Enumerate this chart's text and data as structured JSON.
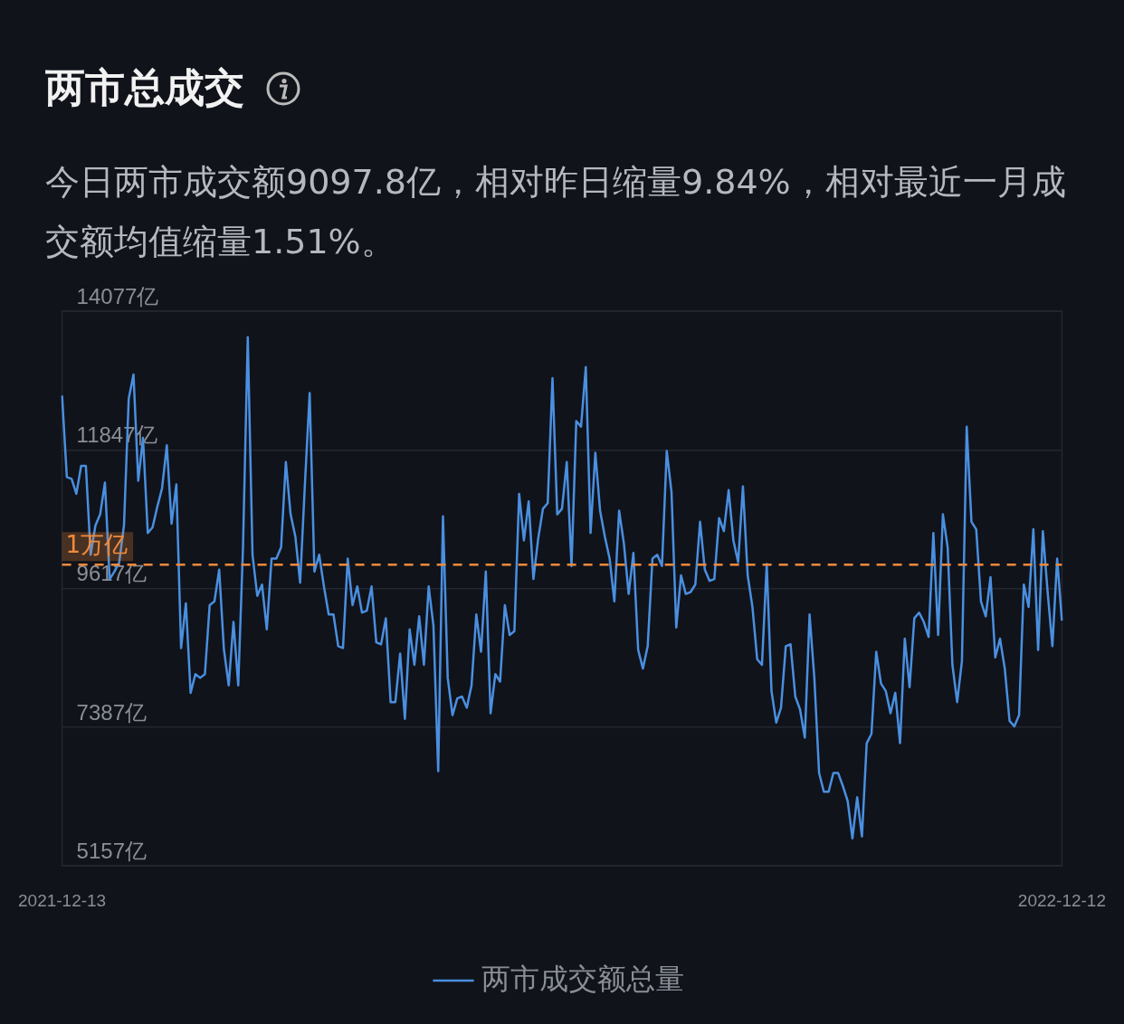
{
  "chart_data": {
    "type": "line",
    "title": "两市总成交",
    "subtitle": "今日两市成交额9097.8亿，相对昨日缩量9.84%，相对最近一月成交额均值缩量1.51%。",
    "categories": [
      "2021-12-13",
      null,
      null,
      null,
      null,
      null,
      null,
      null,
      null,
      null,
      null,
      null,
      null,
      null,
      null,
      null,
      null,
      null,
      null,
      null,
      null,
      null,
      null,
      null,
      null,
      null,
      null,
      null,
      null,
      null,
      null,
      null,
      null,
      null,
      null,
      null,
      null,
      null,
      null,
      null,
      null,
      null,
      null,
      null,
      null,
      null,
      null,
      null,
      null,
      null,
      null,
      null,
      null,
      null,
      null,
      null,
      null,
      null,
      null,
      null,
      null,
      null,
      null,
      null,
      null,
      null,
      null,
      null,
      null,
      null,
      null,
      null,
      null,
      null,
      null,
      null,
      null,
      null,
      null,
      null,
      null,
      null,
      null,
      null,
      null,
      null,
      null,
      null,
      null,
      null,
      null,
      null,
      null,
      null,
      null,
      null,
      null,
      null,
      null,
      null,
      null,
      null,
      null,
      null,
      null,
      null,
      null,
      null,
      null,
      null,
      null,
      null,
      null,
      null,
      null,
      null,
      null,
      null,
      null,
      null,
      null,
      null,
      null,
      null,
      null,
      null,
      null,
      null,
      null,
      null,
      null,
      null,
      null,
      null,
      null,
      null,
      null,
      null,
      null,
      null,
      null,
      null,
      null,
      null,
      null,
      null,
      null,
      null,
      null,
      null,
      null,
      null,
      null,
      null,
      null,
      null,
      null,
      null,
      null,
      null,
      null,
      null,
      null,
      null,
      null,
      null,
      null,
      null,
      null,
      null,
      null,
      null,
      null,
      null,
      null,
      null,
      null,
      null,
      null,
      null,
      null,
      null,
      null,
      null,
      null,
      null,
      null,
      null,
      null,
      null,
      null,
      null,
      null,
      null,
      null,
      null,
      null,
      null,
      null,
      null,
      null,
      null,
      null,
      null,
      null,
      null,
      null,
      null,
      null,
      null,
      "2022-12-12"
    ],
    "series": [
      {
        "name": "两市成交额总量",
        "color": "#4a8fe0",
        "values": [
          12720,
          11410,
          11380,
          11140,
          11590,
          11590,
          10160,
          10630,
          10810,
          11320,
          9770,
          9890,
          10040,
          10630,
          12670,
          13060,
          11350,
          12040,
          10510,
          10600,
          10930,
          11230,
          11920,
          10660,
          11290,
          8660,
          9380,
          7940,
          8240,
          8180,
          8240,
          9350,
          9410,
          9920,
          8630,
          8060,
          9080,
          8060,
          10280,
          13660,
          10160,
          9500,
          9680,
          8960,
          10100,
          10100,
          10280,
          11650,
          10810,
          10450,
          9710,
          11290,
          12760,
          9890,
          10160,
          9650,
          9200,
          9200,
          8690,
          8660,
          10100,
          9350,
          9650,
          9230,
          9260,
          9650,
          8750,
          8720,
          9140,
          7790,
          7790,
          8570,
          7520,
          8960,
          8390,
          9170,
          8390,
          9650,
          9020,
          6680,
          10780,
          8180,
          7580,
          7850,
          7880,
          7700,
          8060,
          9200,
          8600,
          9890,
          7610,
          8240,
          8120,
          9350,
          8870,
          8930,
          11140,
          10390,
          11020,
          9770,
          10420,
          10900,
          10990,
          13000,
          10810,
          10900,
          11650,
          9980,
          12310,
          12220,
          13180,
          10510,
          11800,
          10870,
          10450,
          10100,
          9410,
          10870,
          10340,
          9530,
          10190,
          8630,
          8330,
          8690,
          10100,
          10160,
          9980,
          11830,
          11170,
          8990,
          9830,
          9530,
          9560,
          9680,
          10690,
          9920,
          9740,
          9770,
          10750,
          10540,
          11200,
          10390,
          10040,
          11260,
          9830,
          9320,
          8480,
          8390,
          10010,
          7970,
          7460,
          7700,
          8690,
          8720,
          7880,
          7670,
          7220,
          9200,
          8180,
          6650,
          6350,
          6350,
          6650,
          6650,
          6440,
          6200,
          5600,
          6260,
          5630,
          7130,
          7280,
          8600,
          8090,
          7970,
          7610,
          7940,
          7130,
          8810,
          8030,
          9140,
          9230,
          9080,
          8840,
          10510,
          8870,
          10810,
          10280,
          8390,
          7790,
          8450,
          12220,
          10690,
          10570,
          9410,
          9170,
          9800,
          8510,
          8810,
          8330,
          7490,
          7400,
          7580,
          9680,
          9320,
          10570,
          8630,
          10540,
          9560,
          8690,
          10100,
          9100
        ]
      }
    ],
    "ylim": [
      5157,
      14077
    ],
    "yticks": [
      {
        "value": 5157,
        "label": "5157亿"
      },
      {
        "value": 7387,
        "label": "7387亿"
      },
      {
        "value": 9617,
        "label": "9617亿"
      },
      {
        "value": 11847,
        "label": "11847亿"
      },
      {
        "value": 14077,
        "label": "14077亿"
      }
    ],
    "ref_lines": [
      {
        "axis": "y",
        "value": 10000,
        "label": "1万亿",
        "color": "#f08a3c",
        "line_style": "dashed"
      }
    ],
    "grid": "y",
    "legend": "bottom",
    "marker": "none",
    "line_style": "solid"
  }
}
